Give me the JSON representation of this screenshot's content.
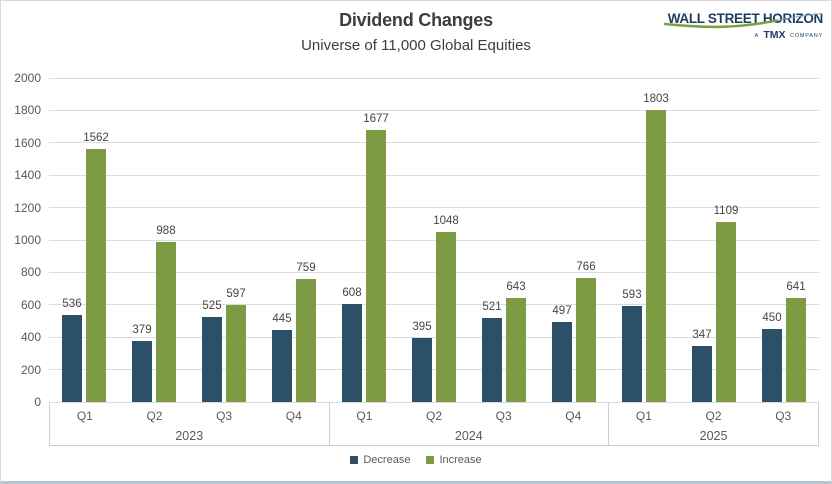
{
  "header": {
    "title": "Dividend Changes",
    "subtitle": "Universe of 11,000 Global Equities"
  },
  "logo": {
    "brand": "WALL STREET HORIZON",
    "tagline_a": "A",
    "tagline_tmx": "TMX",
    "tagline_company": "COMPANY"
  },
  "chart_data": {
    "type": "bar",
    "title": "Dividend Changes",
    "subtitle": "Universe of 11,000 Global Equities",
    "ylim": [
      0,
      2000
    ],
    "ytick_step": 200,
    "grid": true,
    "legend_position": "bottom",
    "groups": [
      {
        "label": "2023",
        "quarters": [
          "Q1",
          "Q2",
          "Q3",
          "Q4"
        ]
      },
      {
        "label": "2024",
        "quarters": [
          "Q1",
          "Q2",
          "Q3",
          "Q4"
        ]
      },
      {
        "label": "2025",
        "quarters": [
          "Q1",
          "Q2",
          "Q3"
        ]
      }
    ],
    "series": [
      {
        "name": "Decrease",
        "color": "#2b5068",
        "values": [
          536,
          379,
          525,
          445,
          608,
          395,
          521,
          497,
          593,
          347,
          450
        ]
      },
      {
        "name": "Increase",
        "color": "#7c9b42",
        "values": [
          1562,
          988,
          597,
          759,
          1677,
          1048,
          643,
          766,
          1803,
          1109,
          641
        ]
      }
    ]
  },
  "colors": {
    "decrease": "#2b5068",
    "increase": "#7c9b42",
    "grid": "#dcdcdc",
    "axis": "#cfcfcf",
    "text_muted": "#595959",
    "text_dark": "#444444",
    "logo_navy": "#1e3c5f",
    "logo_green": "#7ba03f",
    "bottom_border": "#b9c5ce"
  }
}
